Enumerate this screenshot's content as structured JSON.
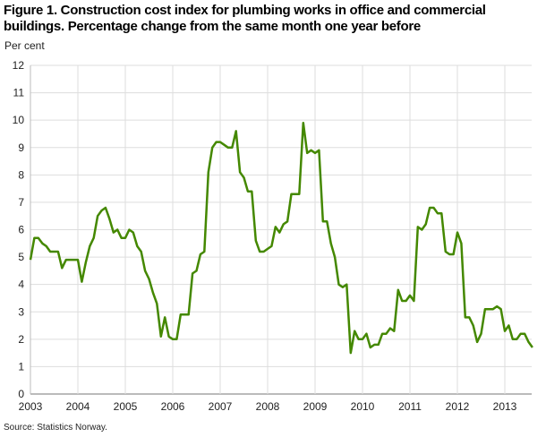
{
  "chart_data": {
    "type": "line",
    "title": "Figure 1. Construction cost index for plumbing works in office and commercial buildings. Percentage change from the same month one year before",
    "ylabel": "Per cent",
    "xlabel": "",
    "source": "Source: Statistics Norway.",
    "ylim": [
      0,
      12
    ],
    "yticks": [
      "0",
      "1",
      "2",
      "3",
      "4",
      "5",
      "6",
      "7",
      "8",
      "9",
      "10",
      "11",
      "12"
    ],
    "xticks": [
      "2003",
      "2004",
      "2005",
      "2006",
      "2007",
      "2008",
      "2009",
      "2010",
      "2011",
      "2012",
      "2013"
    ],
    "x_start": "2003-01",
    "x_frequency": "monthly",
    "grid": true,
    "series": [
      {
        "name": "Plumbing works, office and commercial buildings",
        "color": "#448800",
        "values": [
          4.9,
          5.7,
          5.7,
          5.5,
          5.4,
          5.2,
          5.2,
          5.2,
          4.6,
          4.9,
          4.9,
          4.9,
          4.9,
          4.1,
          4.8,
          5.4,
          5.7,
          6.5,
          6.7,
          6.8,
          6.4,
          5.9,
          6.0,
          5.7,
          5.7,
          6.0,
          5.9,
          5.4,
          5.2,
          4.5,
          4.2,
          3.7,
          3.3,
          2.1,
          2.8,
          2.1,
          2.0,
          2.0,
          2.9,
          2.9,
          2.9,
          4.4,
          4.5,
          5.1,
          5.2,
          8.1,
          9.0,
          9.2,
          9.2,
          9.1,
          9.0,
          9.0,
          9.6,
          8.1,
          7.9,
          7.4,
          7.4,
          5.6,
          5.2,
          5.2,
          5.3,
          5.4,
          6.1,
          5.9,
          6.2,
          6.3,
          7.3,
          7.3,
          7.3,
          9.9,
          8.8,
          8.9,
          8.8,
          8.9,
          6.3,
          6.3,
          5.5,
          5.0,
          4.0,
          3.9,
          4.0,
          1.5,
          2.3,
          2.0,
          2.0,
          2.2,
          1.7,
          1.8,
          1.8,
          2.2,
          2.2,
          2.4,
          2.3,
          3.8,
          3.4,
          3.4,
          3.6,
          3.4,
          6.1,
          6.0,
          6.2,
          6.8,
          6.8,
          6.6,
          6.6,
          5.2,
          5.1,
          5.1,
          5.9,
          5.5,
          2.8,
          2.8,
          2.5,
          1.9,
          2.2,
          3.1,
          3.1,
          3.1,
          3.2,
          3.1,
          2.3,
          2.5,
          2.0,
          2.0,
          2.2,
          2.2,
          1.9,
          1.7
        ]
      }
    ]
  }
}
